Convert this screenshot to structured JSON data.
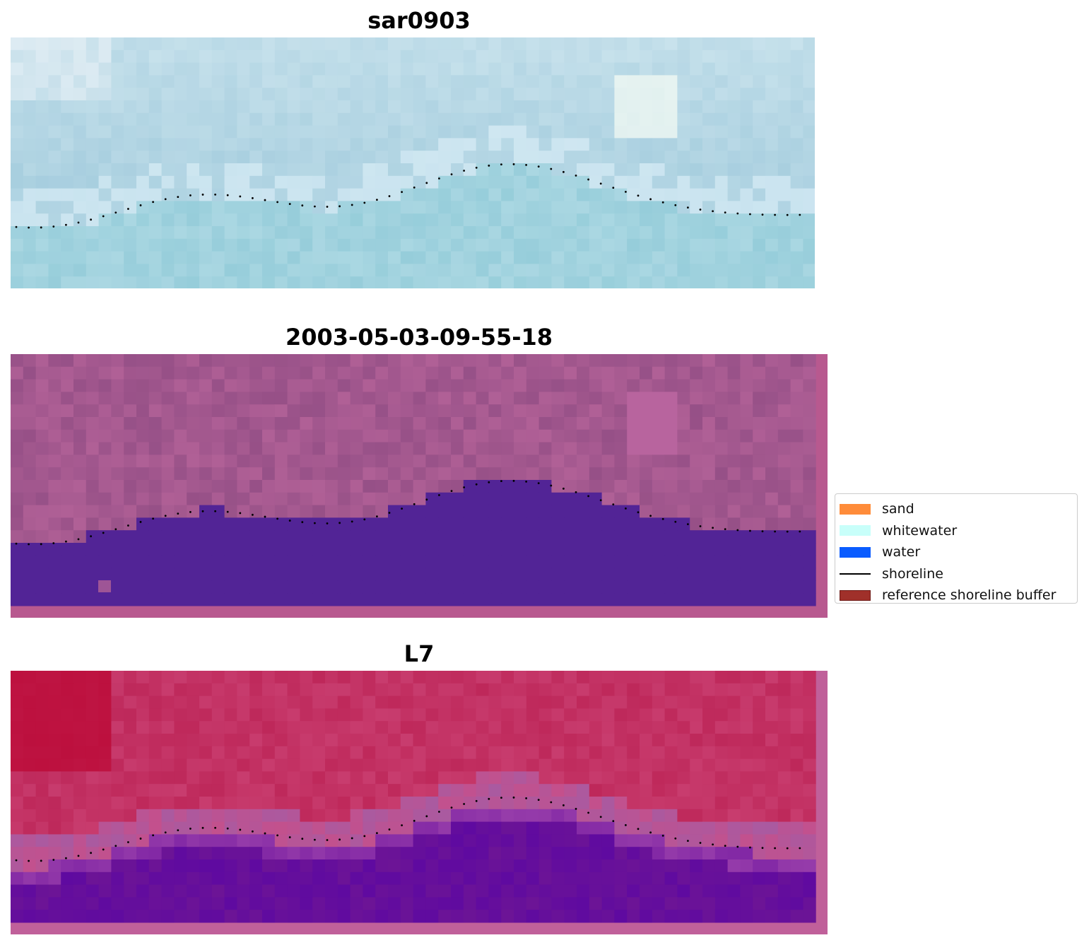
{
  "panels": [
    {
      "title": "sar0903",
      "style": "sar"
    },
    {
      "title": "2003-05-03-09-55-18",
      "style": "classified"
    },
    {
      "title": "L7",
      "style": "mndwi"
    }
  ],
  "legend": {
    "items": [
      {
        "label": "sand",
        "color": "#ff8c3a",
        "kind": "patch"
      },
      {
        "label": "whitewater",
        "color": "#c8fffa",
        "kind": "patch"
      },
      {
        "label": "water",
        "color": "#0a5cff",
        "kind": "patch"
      },
      {
        "label": "shoreline",
        "color": "#000000",
        "kind": "line"
      },
      {
        "label": "reference shoreline buffer",
        "color": "#a0302a",
        "kind": "patch"
      }
    ]
  }
}
